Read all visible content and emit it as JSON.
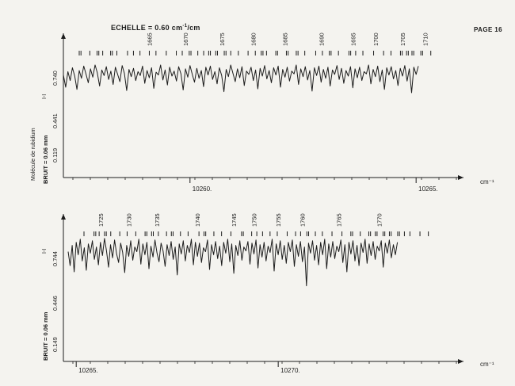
{
  "header": {
    "scale_prefix": "ECHELLE = 0.60 cm",
    "scale_exponent": "-1",
    "scale_suffix": "/cm",
    "page_label": "PAGE 16"
  },
  "panel_left_label": "Molécule de rubidium",
  "axis_unit": "cm⁻¹",
  "chart_data": [
    {
      "type": "line",
      "title": "",
      "xlabel": "cm⁻¹",
      "x_range": [
        10257.2,
        10265.4
      ],
      "x_ticks": [
        {
          "value": 10260,
          "label": "10260."
        },
        {
          "value": 10265,
          "label": "10265."
        }
      ],
      "y_axis": {
        "label": "BRUIT = 0.06 mm",
        "ticks": [
          "0.740",
          "0.441",
          "0.119"
        ],
        "mark": "I-I"
      },
      "line_numbers": [
        "1665",
        "1670",
        "1675",
        "1680",
        "1685",
        "1690",
        "1695",
        "1700",
        "1705",
        "1710",
        "1715",
        "1720"
      ],
      "line_number_positions": [
        10259.1,
        10259.9,
        10260.7,
        10261.4,
        10262.1,
        10262.9,
        10263.6,
        10264.1,
        10264.7,
        10265.2,
        10265.8,
        10266.3
      ],
      "series": [
        {
          "x_start": 10257.2,
          "x_step": 0.05,
          "values": [
            0.72,
            0.5,
            0.78,
            0.62,
            0.85,
            0.7,
            0.46,
            0.8,
            0.66,
            0.88,
            0.74,
            0.58,
            0.83,
            0.68,
            0.9,
            0.76,
            0.52,
            0.81,
            0.71,
            0.87,
            0.64,
            0.79,
            0.55,
            0.86,
            0.73,
            0.6,
            0.89,
            0.75,
            0.44,
            0.82,
            0.69,
            0.84,
            0.62,
            0.78,
            0.71,
            0.88,
            0.57,
            0.8,
            0.67,
            0.85,
            0.48,
            0.77,
            0.72,
            0.9,
            0.63,
            0.81,
            0.54,
            0.86,
            0.7,
            0.79,
            0.61,
            0.87,
            0.74,
            0.45,
            0.83,
            0.68,
            0.89,
            0.73,
            0.59,
            0.84,
            0.66,
            0.8,
            0.51,
            0.86,
            0.72,
            0.88,
            0.64,
            0.78,
            0.56,
            0.85,
            0.71,
            0.42,
            0.82,
            0.69,
            0.9,
            0.75,
            0.6,
            0.83,
            0.67,
            0.87,
            0.53,
            0.79,
            0.73,
            0.86,
            0.62,
            0.81,
            0.47,
            0.84,
            0.7,
            0.89,
            0.65,
            0.8,
            0.58,
            0.85,
            0.72,
            0.88,
            0.5,
            0.82,
            0.68,
            0.86,
            0.61,
            0.79,
            0.74,
            0.9,
            0.55,
            0.83,
            0.69,
            0.87,
            0.63,
            0.8,
            0.43,
            0.85,
            0.71,
            0.88,
            0.59,
            0.82,
            0.66,
            0.86,
            0.52,
            0.81,
            0.73,
            0.89,
            0.64,
            0.84,
            0.57,
            0.8,
            0.7,
            0.87,
            0.49,
            0.83,
            0.67,
            0.86,
            0.62,
            0.78,
            0.74,
            0.9,
            0.56,
            0.82,
            0.69,
            0.88,
            0.6,
            0.81,
            0.46,
            0.85,
            0.72,
            0.87,
            0.65,
            0.8,
            0.53,
            0.84,
            0.7,
            0.89,
            0.61,
            0.83,
            0.4,
            0.86,
            0.73,
            0.88
          ]
        }
      ]
    },
    {
      "type": "line",
      "title": "",
      "xlabel": "cm⁻¹",
      "x_range": [
        10264.8,
        10273.9
      ],
      "x_ticks": [
        {
          "value": 10265,
          "label": "10265."
        },
        {
          "value": 10270,
          "label": "10270."
        }
      ],
      "y_axis": {
        "label": "BRUIT = 0.06 mm",
        "ticks": [
          "0.744",
          "0.446",
          "0.149"
        ],
        "mark": "I-I"
      },
      "line_numbers": [
        "1725",
        "1730",
        "1735",
        "1740",
        "1745",
        "1750",
        "1755",
        "1760",
        "1765",
        "1770"
      ],
      "line_number_positions": [
        10265.6,
        10266.3,
        10267.0,
        10268.0,
        10268.9,
        10269.4,
        10270.0,
        10270.6,
        10271.5,
        10272.5
      ],
      "series": [
        {
          "x_start": 10264.8,
          "x_step": 0.05,
          "values": [
            0.74,
            0.56,
            0.82,
            0.48,
            0.86,
            0.7,
            0.9,
            0.62,
            0.79,
            0.5,
            0.84,
            0.72,
            0.88,
            0.64,
            0.8,
            0.57,
            0.86,
            0.69,
            0.91,
            0.75,
            0.54,
            0.83,
            0.66,
            0.89,
            0.71,
            0.6,
            0.85,
            0.73,
            0.47,
            0.82,
            0.68,
            0.88,
            0.63,
            0.8,
            0.74,
            0.9,
            0.58,
            0.84,
            0.7,
            0.86,
            0.52,
            0.81,
            0.67,
            0.89,
            0.72,
            0.61,
            0.85,
            0.75,
            0.55,
            0.83,
            0.69,
            0.87,
            0.64,
            0.8,
            0.44,
            0.84,
            0.71,
            0.88,
            0.62,
            0.82,
            0.73,
            0.9,
            0.57,
            0.86,
            0.68,
            0.85,
            0.6,
            0.79,
            0.74,
            0.89,
            0.51,
            0.83,
            0.7,
            0.87,
            0.65,
            0.81,
            0.56,
            0.86,
            0.72,
            0.9,
            0.61,
            0.84,
            0.46,
            0.82,
            0.69,
            0.88,
            0.63,
            0.8,
            0.75,
            0.87,
            0.58,
            0.85,
            0.71,
            0.89,
            0.53,
            0.83,
            0.67,
            0.86,
            0.62,
            0.81,
            0.73,
            0.9,
            0.49,
            0.84,
            0.7,
            0.88,
            0.64,
            0.82,
            0.59,
            0.86,
            0.74,
            0.89,
            0.55,
            0.83,
            0.68,
            0.87,
            0.61,
            0.8,
            0.3,
            0.85,
            0.72,
            0.88,
            0.63,
            0.82,
            0.57,
            0.86,
            0.7,
            0.9,
            0.52,
            0.84,
            0.67,
            0.87,
            0.65,
            0.81,
            0.74,
            0.89,
            0.6,
            0.83,
            0.48,
            0.86,
            0.71,
            0.88,
            0.62,
            0.82,
            0.56,
            0.85,
            0.73,
            0.9,
            0.59,
            0.84,
            0.69,
            0.87,
            0.64,
            0.81,
            0.75,
            0.88,
            0.54,
            0.85,
            0.72,
            0.89,
            0.66,
            0.83,
            0.7,
            0.86
          ]
        }
      ]
    }
  ]
}
